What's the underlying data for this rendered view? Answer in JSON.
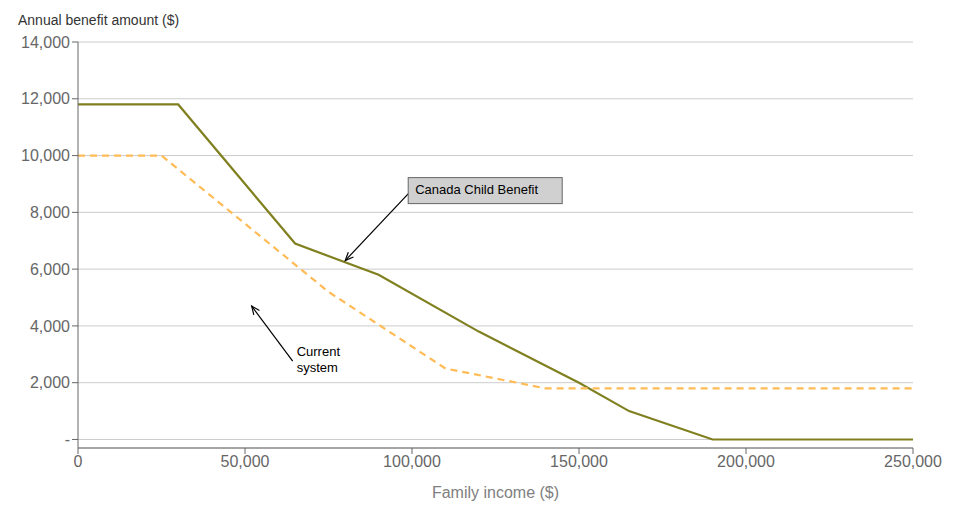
{
  "chart_data": {
    "type": "line",
    "xlabel": "Family income ($)",
    "ylabel": "Annual benefit amount ($)",
    "series": [
      {
        "color": "#808020",
        "line_style": "solid",
        "x": [
          0,
          30000,
          30000,
          65000,
          90000,
          120000,
          150000,
          165000,
          190000,
          250000
        ],
        "values": [
          11800,
          11800,
          11800,
          6900,
          5800,
          3800,
          2000,
          1000,
          0,
          0
        ]
      },
      {
        "color": "#FFBB55",
        "line_style": "dashed",
        "x": [
          0,
          25000,
          75000,
          110000,
          140000,
          250000
        ],
        "values": [
          10000,
          10000,
          5200,
          2500,
          1800,
          1800
        ]
      }
    ],
    "xlim": [
      0,
      250000
    ],
    "ylim": [
      -300,
      14000
    ],
    "xticks": [
      0,
      {
        "value": 50000,
        "label": "50,000"
      },
      {
        "value": 100000,
        "label": "100,000"
      },
      {
        "value": 150000,
        "label": "150,000"
      },
      {
        "value": 200000,
        "label": "200,000"
      },
      {
        "value": 250000,
        "label": "250,000"
      }
    ],
    "yticks": [
      {
        "value": 0,
        "label": "-"
      },
      {
        "value": 2000,
        "label": "2,000"
      },
      {
        "value": 4000,
        "label": "4,000"
      },
      {
        "value": 6000,
        "label": "6,000"
      },
      {
        "value": 8000,
        "label": "8,000"
      },
      {
        "value": 10000,
        "label": "10,000"
      },
      {
        "value": 12000,
        "label": "12,000"
      },
      {
        "value": 14000,
        "label": "14,000"
      }
    ],
    "grid": true,
    "annotations": [
      {
        "text": "Canada Child Benefit",
        "x": 80000,
        "y": 6300,
        "boxed": true
      },
      {
        "text": "Current\nsystem",
        "x": 52000,
        "y": 4700,
        "boxed": false
      }
    ]
  }
}
